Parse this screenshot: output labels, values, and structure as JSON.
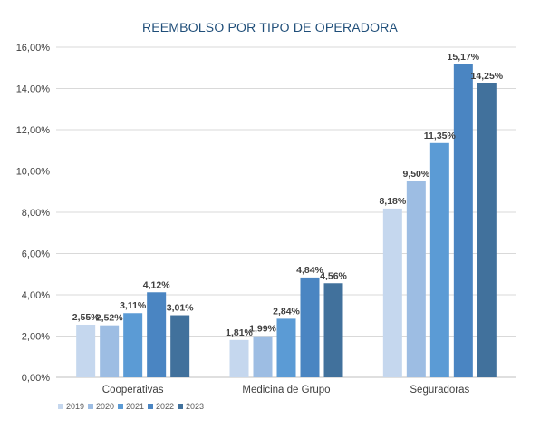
{
  "chart_data": {
    "type": "bar",
    "title": "REEMBOLSO POR TIPO DE OPERADORA",
    "xlabel": "",
    "ylabel": "",
    "categories": [
      "Cooperativas",
      "Medicina de Grupo",
      "Seguradoras"
    ],
    "series": [
      {
        "name": "2019",
        "color": "#c5d7ee",
        "values": [
          2.55,
          1.81,
          8.18
        ],
        "labels": [
          "2,55%",
          "1,81%",
          "8,18%"
        ]
      },
      {
        "name": "2020",
        "color": "#9dbde3",
        "values": [
          2.52,
          1.99,
          9.5
        ],
        "labels": [
          "2,52%",
          "1,99%",
          "9,50%"
        ]
      },
      {
        "name": "2021",
        "color": "#5b9bd5",
        "values": [
          3.11,
          2.84,
          11.35
        ],
        "labels": [
          "3,11%",
          "2,84%",
          "11,35%"
        ]
      },
      {
        "name": "2022",
        "color": "#4a85c2",
        "values": [
          4.12,
          4.84,
          15.17
        ],
        "labels": [
          "4,12%",
          "4,84%",
          "15,17%"
        ]
      },
      {
        "name": "2023",
        "color": "#41719c",
        "values": [
          3.01,
          4.56,
          14.25
        ],
        "labels": [
          "3,01%",
          "4,56%",
          "14,25%"
        ]
      }
    ],
    "ylim": [
      0,
      16
    ],
    "yticks": [
      0,
      2,
      4,
      6,
      8,
      10,
      12,
      14,
      16
    ],
    "ytick_labels": [
      "0,00%",
      "2,00%",
      "4,00%",
      "6,00%",
      "8,00%",
      "10,00%",
      "12,00%",
      "14,00%",
      "16,00%"
    ],
    "grid": true,
    "legend_position": "bottom-left",
    "gridline_color": "#d9d9d9"
  }
}
